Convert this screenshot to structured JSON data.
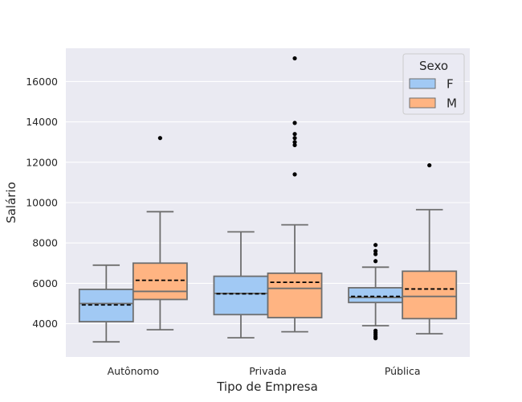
{
  "chart_data": {
    "type": "boxplot",
    "title": "",
    "xlabel": "Tipo de Empresa",
    "ylabel": "Salário",
    "categories": [
      "Autônomo",
      "Privada",
      "Pública"
    ],
    "ylim": [
      2350,
      17650
    ],
    "yticks": [
      4000,
      6000,
      8000,
      10000,
      12000,
      14000,
      16000
    ],
    "grid": true,
    "legend": {
      "title": "Sexo",
      "position": "top-right"
    },
    "series": [
      {
        "name": "F",
        "color": "#a1c9f4",
        "boxes": [
          {
            "category": "Autônomo",
            "whisker_low": 3100,
            "q1": 4100,
            "median": 5000,
            "q3": 5700,
            "whisker_high": 6900,
            "mean": 4930,
            "outliers": []
          },
          {
            "category": "Privada",
            "whisker_low": 3300,
            "q1": 4450,
            "median": 5500,
            "q3": 6350,
            "whisker_high": 8550,
            "mean": 5480,
            "outliers": []
          },
          {
            "category": "Pública",
            "whisker_low": 3900,
            "q1": 5050,
            "median": 5300,
            "q3": 5780,
            "whisker_high": 6800,
            "mean": 5350,
            "outliers": [
              7100,
              7450,
              7600,
              7900,
              3650,
              3550,
              3450,
              3350,
              3280
            ]
          }
        ]
      },
      {
        "name": "M",
        "color": "#ffb482",
        "boxes": [
          {
            "category": "Autônomo",
            "whisker_low": 3700,
            "q1": 5200,
            "median": 5600,
            "q3": 7000,
            "whisker_high": 9550,
            "mean": 6150,
            "outliers": [
              13200
            ]
          },
          {
            "category": "Privada",
            "whisker_low": 3600,
            "q1": 4300,
            "median": 5750,
            "q3": 6500,
            "whisker_high": 8900,
            "mean": 6050,
            "outliers": [
              11400,
              12850,
              13000,
              13200,
              13400,
              13950,
              17150
            ]
          },
          {
            "category": "Pública",
            "whisker_low": 3500,
            "q1": 4250,
            "median": 5350,
            "q3": 6600,
            "whisker_high": 9650,
            "mean": 5720,
            "outliers": [
              11850
            ]
          }
        ]
      }
    ]
  }
}
